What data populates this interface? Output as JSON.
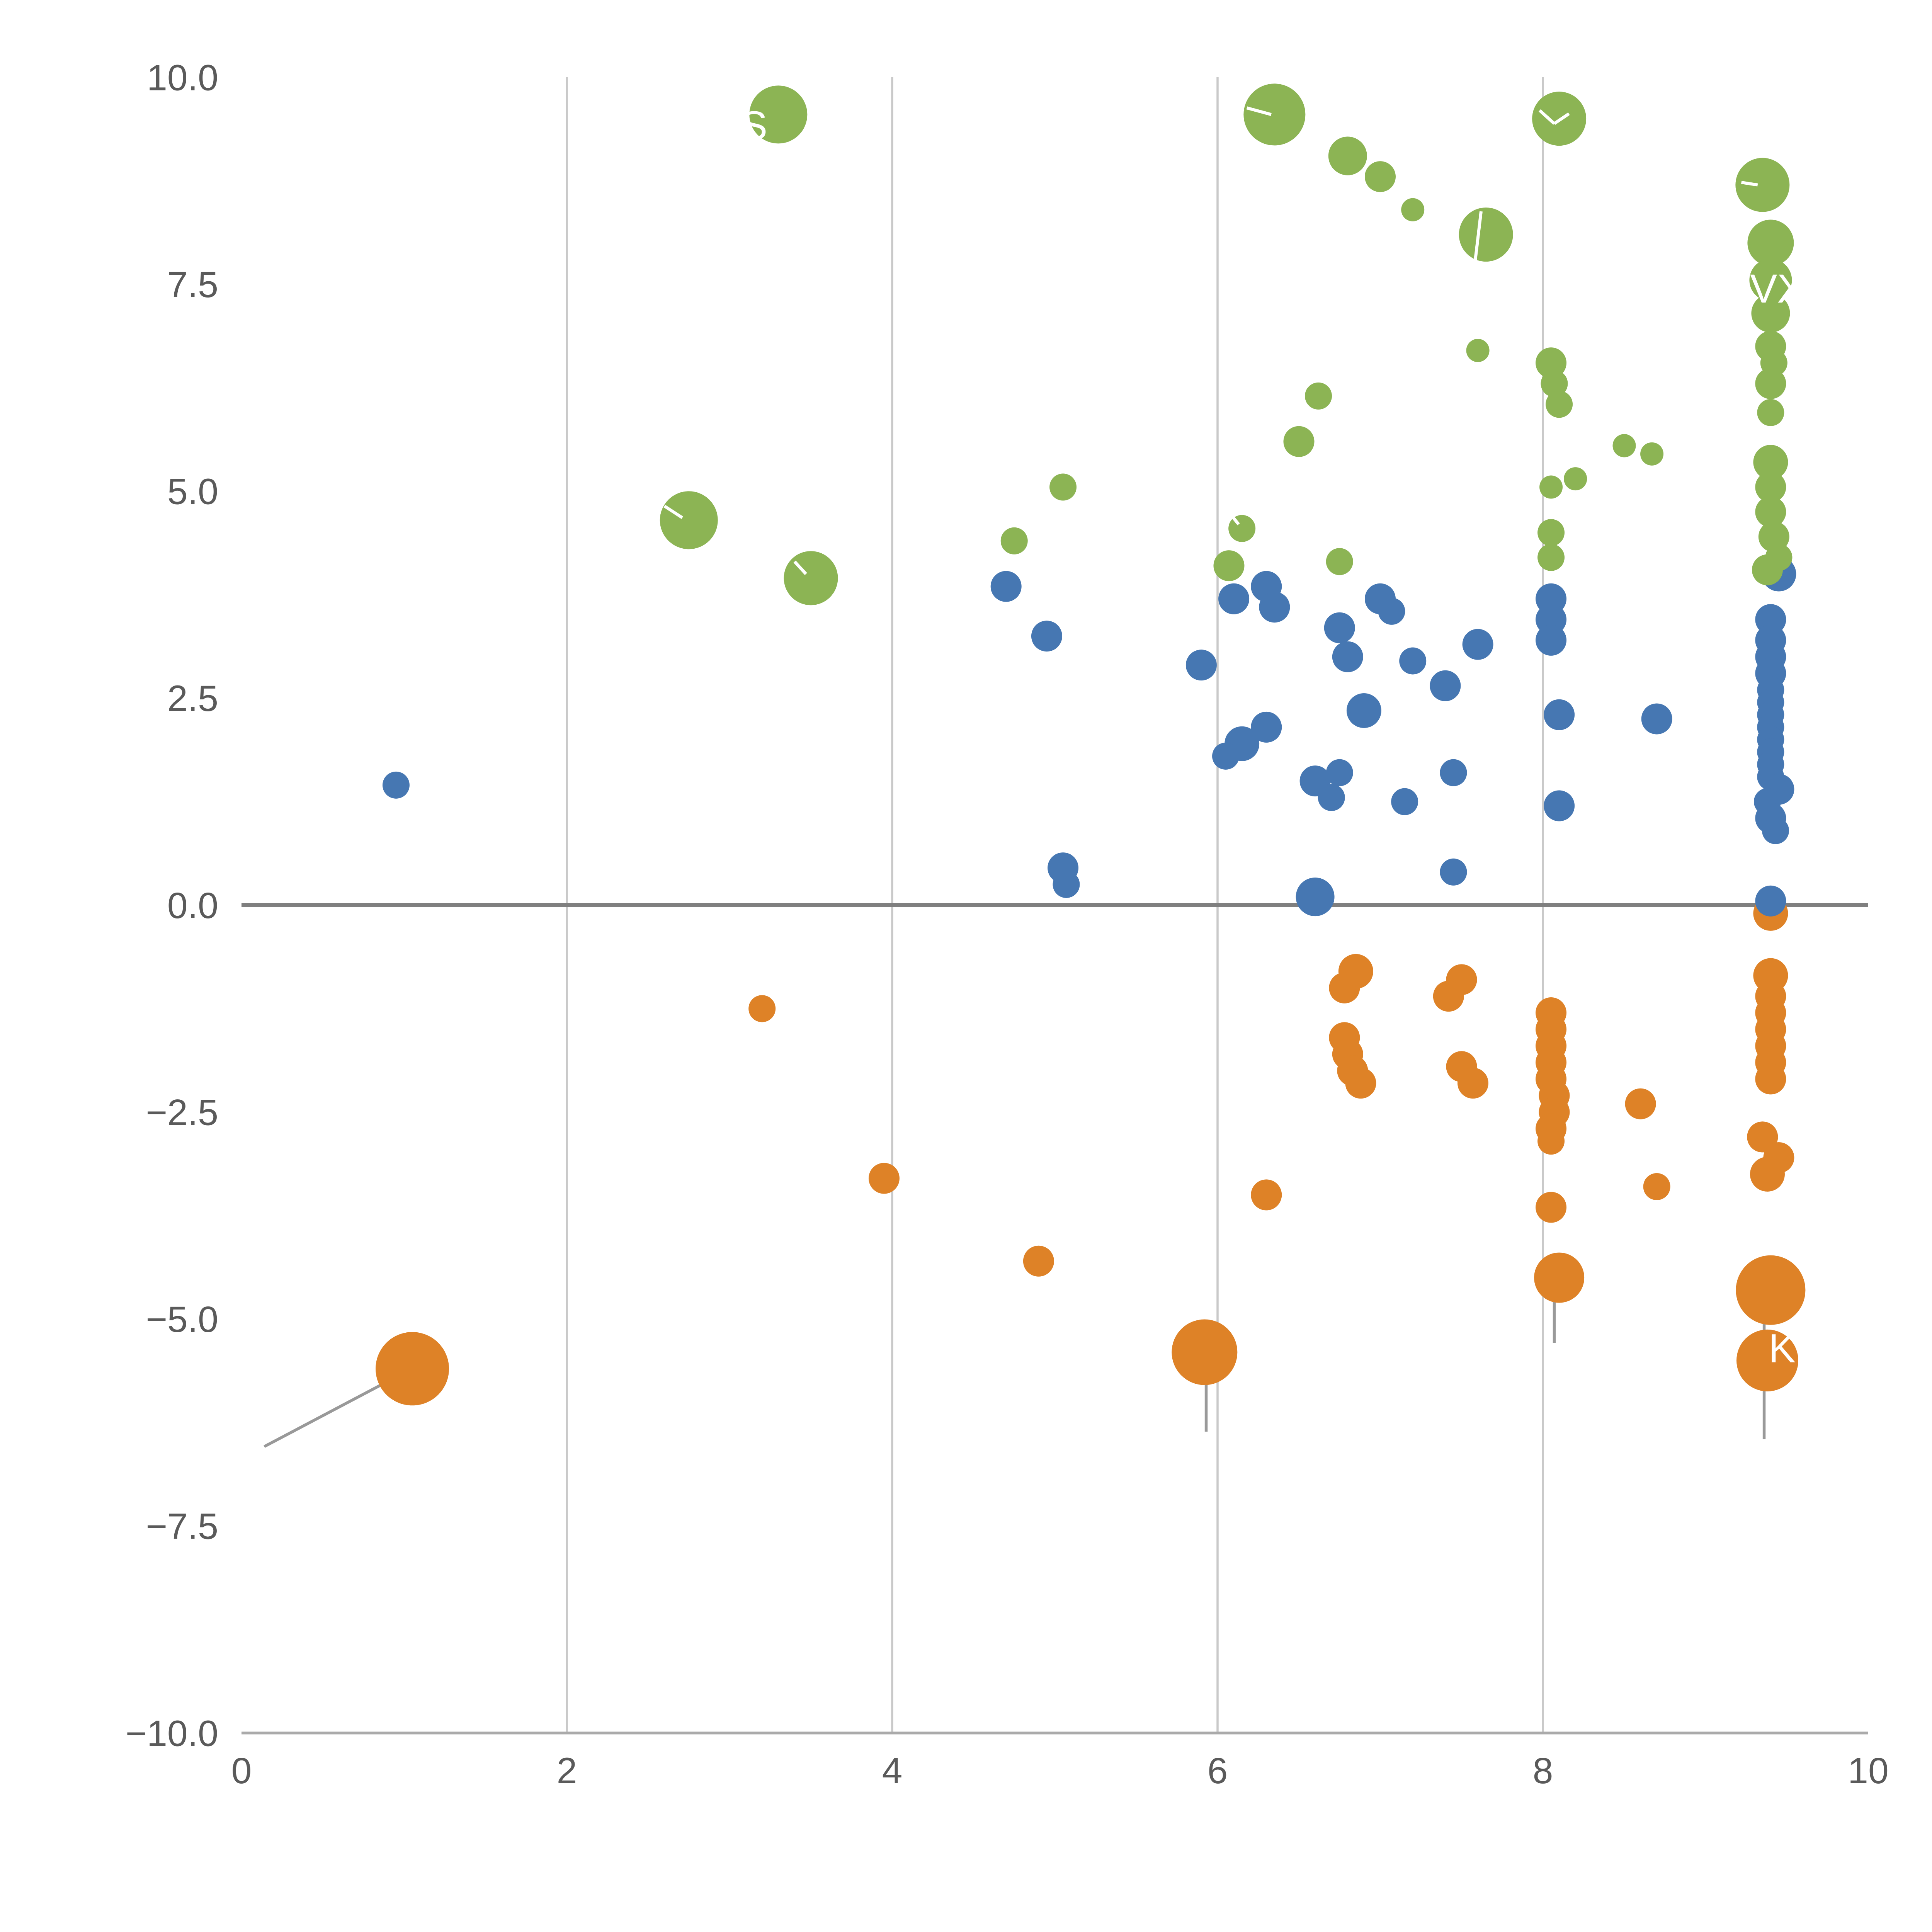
{
  "chart_data": {
    "type": "scatter",
    "title": "",
    "xlabel": "",
    "ylabel": "",
    "xlim": [
      0,
      10
    ],
    "ylim": [
      -10,
      10
    ],
    "grid": true,
    "legend": "none",
    "x_ticks": {
      "values": [
        0,
        2,
        4,
        6,
        8,
        10
      ],
      "labels": [
        "0",
        "2",
        "4",
        "6",
        "8",
        "10"
      ]
    },
    "y_ticks": {
      "values": [
        10,
        7.5,
        5,
        2.5,
        0,
        -2.5,
        -5,
        -7.5,
        -10
      ],
      "labels": [
        "10.0",
        "7.5",
        "5.0",
        "2.5",
        "0.0",
        "−2.5",
        "−5.0",
        "−7.5",
        "−10.0"
      ]
    },
    "gridlines_x": [
      2,
      4,
      6,
      8
    ],
    "zero_line_y": 0,
    "colors": {
      "green": "#8CB454",
      "blue": "#4677B2",
      "orange": "#DE8227",
      "zero_line": "#7f7f7f",
      "grid": "#c9c9c9",
      "axis": "#aaaaaa",
      "tick_text": "#5a5a5a",
      "annotation_text": "#ffffff",
      "leader": "#999999"
    },
    "series": [
      {
        "name": "green-bubbles",
        "color_key": "green",
        "points": [
          [
            3.3,
            9.55,
            15
          ],
          [
            6.35,
            9.55,
            16
          ],
          [
            8.1,
            9.5,
            14
          ],
          [
            6.8,
            9.05,
            10
          ],
          [
            7.0,
            8.8,
            8
          ],
          [
            7.2,
            8.4,
            6
          ],
          [
            7.65,
            8.1,
            14
          ],
          [
            9.35,
            8.7,
            14
          ],
          [
            9.4,
            8.0,
            12
          ],
          [
            9.4,
            7.55,
            11
          ],
          [
            9.4,
            7.15,
            10
          ],
          [
            9.4,
            6.75,
            8
          ],
          [
            9.42,
            6.55,
            7
          ],
          [
            7.6,
            6.7,
            6
          ],
          [
            8.05,
            6.55,
            8
          ],
          [
            8.07,
            6.3,
            7
          ],
          [
            8.1,
            6.05,
            7
          ],
          [
            6.62,
            6.15,
            7
          ],
          [
            6.5,
            5.6,
            8
          ],
          [
            8.5,
            5.55,
            6
          ],
          [
            8.67,
            5.45,
            6
          ],
          [
            5.05,
            5.05,
            7
          ],
          [
            2.75,
            4.65,
            15
          ],
          [
            3.5,
            3.95,
            14
          ],
          [
            4.75,
            4.4,
            7
          ],
          [
            6.15,
            4.55,
            7
          ],
          [
            6.07,
            4.1,
            8
          ],
          [
            6.75,
            4.15,
            7
          ],
          [
            8.2,
            5.15,
            6
          ],
          [
            8.05,
            5.05,
            6
          ],
          [
            9.4,
            6.3,
            8
          ],
          [
            9.4,
            5.95,
            7
          ],
          [
            9.4,
            5.35,
            9
          ],
          [
            9.4,
            5.05,
            8
          ],
          [
            9.4,
            4.75,
            8
          ],
          [
            9.42,
            4.45,
            8
          ],
          [
            9.45,
            4.2,
            7
          ],
          [
            9.38,
            4.05,
            8
          ],
          [
            8.05,
            4.5,
            7
          ],
          [
            8.05,
            4.2,
            7
          ]
        ]
      },
      {
        "name": "blue-bubbles",
        "color_key": "blue",
        "points": [
          [
            0.95,
            1.45,
            7
          ],
          [
            4.7,
            3.85,
            8
          ],
          [
            4.95,
            3.25,
            8
          ],
          [
            5.05,
            0.45,
            8
          ],
          [
            5.07,
            0.25,
            7
          ],
          [
            5.9,
            2.9,
            8
          ],
          [
            6.1,
            3.7,
            8
          ],
          [
            6.3,
            3.85,
            8
          ],
          [
            6.35,
            3.6,
            8
          ],
          [
            6.15,
            1.95,
            9
          ],
          [
            6.3,
            2.15,
            8
          ],
          [
            6.05,
            1.8,
            7
          ],
          [
            6.6,
            1.5,
            8
          ],
          [
            6.75,
            1.6,
            7
          ],
          [
            6.7,
            1.3,
            7
          ],
          [
            6.75,
            3.35,
            8
          ],
          [
            6.8,
            3.0,
            8
          ],
          [
            6.9,
            2.35,
            9
          ],
          [
            7.0,
            3.7,
            8
          ],
          [
            7.07,
            3.55,
            7
          ],
          [
            7.2,
            2.95,
            7
          ],
          [
            7.15,
            1.25,
            7
          ],
          [
            7.4,
            2.65,
            8
          ],
          [
            7.45,
            1.6,
            7
          ],
          [
            7.6,
            3.15,
            8
          ],
          [
            7.45,
            0.4,
            7
          ],
          [
            6.6,
            0.1,
            10
          ],
          [
            8.05,
            3.7,
            8
          ],
          [
            8.05,
            3.45,
            8
          ],
          [
            8.05,
            3.2,
            8
          ],
          [
            8.1,
            2.3,
            8
          ],
          [
            8.1,
            1.2,
            8
          ],
          [
            8.7,
            2.25,
            8
          ],
          [
            9.45,
            4.0,
            9
          ],
          [
            9.4,
            3.45,
            8
          ],
          [
            9.4,
            3.2,
            8
          ],
          [
            9.4,
            3.0,
            8
          ],
          [
            9.4,
            2.8,
            8
          ],
          [
            9.4,
            2.6,
            7
          ],
          [
            9.4,
            2.45,
            7
          ],
          [
            9.4,
            2.3,
            7
          ],
          [
            9.4,
            2.15,
            7
          ],
          [
            9.4,
            2.0,
            7
          ],
          [
            9.4,
            1.85,
            7
          ],
          [
            9.4,
            1.7,
            7
          ],
          [
            9.4,
            1.55,
            7
          ],
          [
            9.45,
            1.4,
            8
          ],
          [
            9.38,
            1.25,
            7
          ],
          [
            9.4,
            1.05,
            8
          ],
          [
            9.43,
            0.9,
            7
          ],
          [
            9.4,
            0.05,
            8
          ]
        ]
      },
      {
        "name": "orange-bubbles",
        "color_key": "orange",
        "points": [
          [
            1.05,
            -5.6,
            19
          ],
          [
            3.2,
            -1.25,
            7
          ],
          [
            3.95,
            -3.3,
            8
          ],
          [
            4.9,
            -4.3,
            8
          ],
          [
            5.92,
            -5.4,
            17
          ],
          [
            6.3,
            -3.5,
            8
          ],
          [
            6.85,
            -0.8,
            9
          ],
          [
            6.78,
            -1.0,
            8
          ],
          [
            6.78,
            -1.6,
            8
          ],
          [
            6.8,
            -1.8,
            8
          ],
          [
            6.83,
            -2.0,
            8
          ],
          [
            6.88,
            -2.15,
            8
          ],
          [
            7.5,
            -0.9,
            8
          ],
          [
            7.42,
            -1.1,
            8
          ],
          [
            7.5,
            -1.95,
            8
          ],
          [
            7.57,
            -2.15,
            8
          ],
          [
            8.05,
            -1.3,
            8
          ],
          [
            8.05,
            -1.5,
            8
          ],
          [
            8.05,
            -1.7,
            8
          ],
          [
            8.05,
            -1.9,
            8
          ],
          [
            8.05,
            -2.1,
            8
          ],
          [
            8.07,
            -2.3,
            8
          ],
          [
            8.07,
            -2.5,
            8
          ],
          [
            8.05,
            -2.7,
            8
          ],
          [
            8.05,
            -2.85,
            7
          ],
          [
            8.6,
            -2.4,
            8
          ],
          [
            8.05,
            -3.65,
            8
          ],
          [
            8.1,
            -4.5,
            13
          ],
          [
            8.7,
            -3.4,
            7
          ],
          [
            9.35,
            -2.8,
            8
          ],
          [
            9.45,
            -3.05,
            8
          ],
          [
            9.38,
            -3.25,
            9
          ],
          [
            9.4,
            -0.1,
            9
          ],
          [
            9.4,
            -0.85,
            9
          ],
          [
            9.4,
            -1.1,
            8
          ],
          [
            9.4,
            -1.3,
            8
          ],
          [
            9.4,
            -1.5,
            8
          ],
          [
            9.4,
            -1.7,
            8
          ],
          [
            9.4,
            -1.9,
            8
          ],
          [
            9.4,
            -2.1,
            8
          ],
          [
            9.4,
            -4.65,
            18
          ],
          [
            9.38,
            -5.5,
            16
          ]
        ]
      }
    ],
    "annotations": [
      {
        "text": "CVX",
        "x": 9.35,
        "y": 7.45
      },
      {
        "text": "K",
        "x": 9.47,
        "y": -5.35
      },
      {
        "text": "S",
        "x": 3.15,
        "y": 9.42
      }
    ],
    "leader_lines_gray": [
      [
        0.14,
        -6.54,
        0.94,
        -5.71
      ],
      [
        5.93,
        -5.55,
        5.93,
        -6.36
      ],
      [
        8.07,
        -4.6,
        8.07,
        -5.29
      ],
      [
        9.36,
        -4.69,
        9.36,
        -6.45
      ]
    ],
    "leader_marks_white": [
      [
        6.18,
        9.63,
        6.33,
        9.55
      ],
      [
        7.98,
        9.6,
        8.07,
        9.44
      ],
      [
        8.07,
        9.44,
        8.16,
        9.56
      ],
      [
        7.62,
        8.38,
        7.58,
        7.72
      ],
      [
        2.6,
        4.82,
        2.71,
        4.68
      ],
      [
        3.4,
        4.15,
        3.47,
        4.0
      ],
      [
        9.22,
        8.73,
        9.32,
        8.7
      ],
      [
        6.08,
        4.72,
        6.13,
        4.6
      ]
    ]
  }
}
